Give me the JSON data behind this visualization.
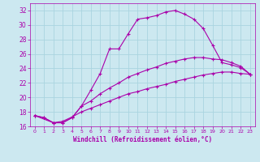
{
  "xlabel": "Windchill (Refroidissement éolien,°C)",
  "bg_color": "#cce8f0",
  "grid_color": "#aad4e0",
  "line_color": "#aa00aa",
  "marker": "+",
  "xlim": [
    -0.5,
    23.5
  ],
  "ylim": [
    16,
    33
  ],
  "xticks": [
    0,
    1,
    2,
    3,
    4,
    5,
    6,
    7,
    8,
    9,
    10,
    11,
    12,
    13,
    14,
    15,
    16,
    17,
    18,
    19,
    20,
    21,
    22,
    23
  ],
  "yticks": [
    16,
    18,
    20,
    22,
    24,
    26,
    28,
    30,
    32
  ],
  "line1_x": [
    0,
    1,
    2,
    3,
    4,
    5,
    6,
    7,
    8,
    9,
    10,
    11,
    12,
    13,
    14,
    15,
    16,
    17,
    18,
    19,
    20,
    21,
    22,
    23
  ],
  "line1_y": [
    17.5,
    17.2,
    16.5,
    16.5,
    17.2,
    18.8,
    21.0,
    23.3,
    26.7,
    26.7,
    28.8,
    30.8,
    31.0,
    31.3,
    31.8,
    32.0,
    31.5,
    30.8,
    29.5,
    27.2,
    24.8,
    24.5,
    24.1,
    23.2
  ],
  "line2_x": [
    0,
    1,
    2,
    3,
    4,
    5,
    6,
    7,
    8,
    9,
    10,
    11,
    12,
    13,
    14,
    15,
    16,
    17,
    18,
    19,
    20,
    21,
    22,
    23
  ],
  "line2_y": [
    17.5,
    17.2,
    16.5,
    16.5,
    17.2,
    18.8,
    19.5,
    20.5,
    21.3,
    22.0,
    22.8,
    23.3,
    23.8,
    24.2,
    24.7,
    25.0,
    25.3,
    25.5,
    25.5,
    25.3,
    25.2,
    24.8,
    24.3,
    23.2
  ],
  "line3_x": [
    0,
    2,
    3,
    4,
    5,
    6,
    7,
    8,
    9,
    10,
    11,
    12,
    13,
    14,
    15,
    16,
    17,
    18,
    19,
    20,
    21,
    22,
    23
  ],
  "line3_y": [
    17.5,
    16.5,
    16.7,
    17.3,
    18.0,
    18.5,
    19.0,
    19.5,
    20.0,
    20.5,
    20.8,
    21.2,
    21.5,
    21.8,
    22.2,
    22.5,
    22.8,
    23.1,
    23.3,
    23.5,
    23.5,
    23.3,
    23.2
  ],
  "xlabel_color": "#aa00aa",
  "tick_label_color": "#aa00aa"
}
